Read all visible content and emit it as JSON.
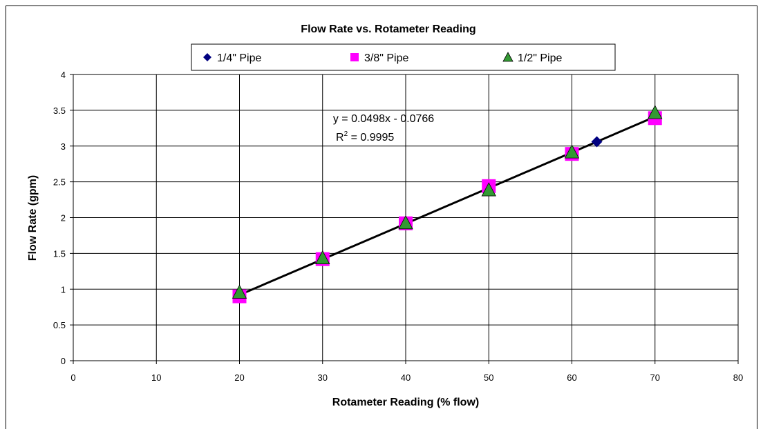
{
  "chart_data": {
    "type": "scatter",
    "title": "Flow Rate vs. Rotameter Reading",
    "xlabel": "Rotameter Reading (% flow)",
    "ylabel": "Flow Rate (gpm)",
    "xlim": [
      0,
      80
    ],
    "ylim": [
      0,
      4
    ],
    "xticks": [
      "0",
      "10",
      "20",
      "30",
      "40",
      "50",
      "60",
      "70",
      "80"
    ],
    "yticks": [
      "0",
      "0.5",
      "1",
      "1.5",
      "2",
      "2.5",
      "3",
      "3.5",
      "4"
    ],
    "grid": true,
    "legend_position": "top",
    "series": [
      {
        "name": "1/4\" Pipe",
        "marker": "diamond",
        "color": "#000080",
        "x": [
          63
        ],
        "y": [
          3.06
        ]
      },
      {
        "name": "3/8\" Pipe",
        "marker": "square",
        "color": "#FF00FF",
        "x": [
          20,
          30,
          40,
          50,
          60,
          70
        ],
        "y": [
          0.9,
          1.42,
          1.92,
          2.44,
          2.89,
          3.39
        ]
      },
      {
        "name": "1/2\" Pipe",
        "marker": "triangle",
        "color": "#339933",
        "x": [
          20,
          30,
          40,
          50,
          60,
          70
        ],
        "y": [
          0.95,
          1.43,
          1.92,
          2.38,
          2.91,
          3.46
        ]
      }
    ],
    "trendline": {
      "slope": 0.0498,
      "intercept": -0.0766,
      "x_range": [
        20,
        70
      ],
      "color": "#000000"
    },
    "annotations": {
      "equation": "y = 0.0498x - 0.0766",
      "r2_prefix": "R",
      "r2_sup": "2",
      "r2_suffix": " = 0.9995"
    }
  }
}
